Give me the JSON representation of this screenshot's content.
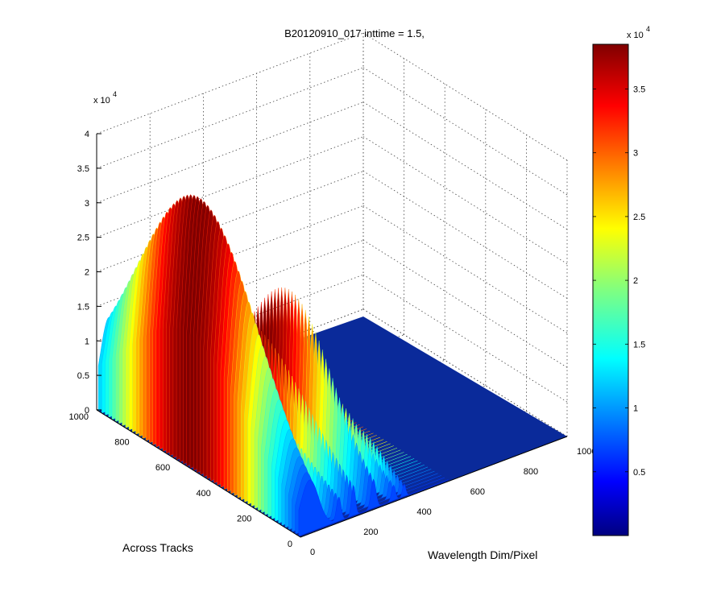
{
  "chart_data": {
    "type": "surface",
    "title": "B20120910_017 inttime = 1.5,",
    "xlabel": "Wavelength Dim/Pixel",
    "ylabel": "Across Tracks",
    "zlabel": "",
    "x_ticks": [
      0,
      200,
      400,
      600,
      800,
      1000
    ],
    "x_tick_labels": [
      "0",
      "200",
      "400",
      "600",
      "800",
      "1000"
    ],
    "y_ticks": [
      0,
      200,
      400,
      600,
      800,
      1000
    ],
    "y_tick_labels": [
      "0",
      "200",
      "400",
      "600",
      "800",
      "1000"
    ],
    "z_ticks": [
      0,
      5000,
      10000,
      15000,
      20000,
      25000,
      30000,
      35000,
      40000
    ],
    "z_tick_labels": [
      "0",
      "0.5",
      "1",
      "1.5",
      "2",
      "2.5",
      "3",
      "3.5",
      "4"
    ],
    "z_multiplier": "x 10",
    "z_exponent": "4",
    "xlim": [
      0,
      1000
    ],
    "ylim": [
      0,
      1000
    ],
    "zlim": [
      0,
      40000
    ],
    "grid": true,
    "colormap": "jet",
    "colorbar": {
      "range": [
        0,
        38500
      ],
      "ticks": [
        5000,
        10000,
        15000,
        20000,
        25000,
        30000,
        35000
      ],
      "tick_labels": [
        "0.5",
        "1",
        "1.5",
        "2",
        "2.5",
        "3",
        "3.5"
      ],
      "multiplier": "x 10",
      "exponent": "4",
      "placement": "right"
    },
    "peaks": [
      {
        "x": 40,
        "y": 550,
        "z": 38500
      },
      {
        "x": 150,
        "y": 560,
        "z": 13000
      },
      {
        "x": 205,
        "y": 520,
        "z": 19000
      },
      {
        "x": 280,
        "y": 420,
        "z": 24000
      },
      {
        "x": 355,
        "y": 320,
        "z": 10000
      },
      {
        "x": 395,
        "y": 240,
        "z": 6000
      }
    ]
  }
}
